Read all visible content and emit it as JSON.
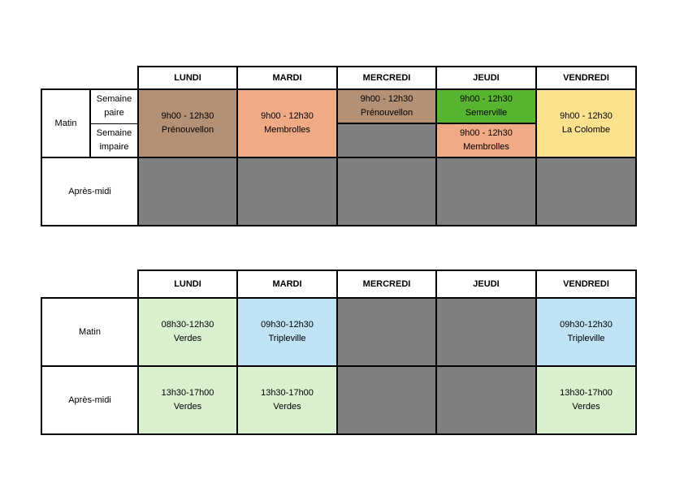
{
  "colors": {
    "brown": "#b49075",
    "salmon": "#f0aa85",
    "green": "#58b530",
    "yellow": "#fde28e",
    "gray": "#7f7f7f",
    "light_green": "#daf1d0",
    "light_blue": "#bee3f4"
  },
  "days": [
    "LUNDI",
    "MARDI",
    "MERCREDI",
    "JEUDI",
    "VENDREDI"
  ],
  "table1": {
    "matin": "Matin",
    "semaine_paire": [
      "Semaine",
      "paire"
    ],
    "semaine_impaire": [
      "Semaine",
      "impaire"
    ],
    "apres_midi": "Après-midi",
    "lundi": [
      "9h00 - 12h30",
      "Prénouvellon"
    ],
    "mardi": [
      "9h00 - 12h30",
      "Membrolles"
    ],
    "mercredi_paire": [
      "9h00 - 12h30",
      "Prénouvellon"
    ],
    "jeudi_paire": [
      "9h00 - 12h30",
      "Semerville"
    ],
    "jeudi_impaire": [
      "9h00 - 12h30",
      "Membrolles"
    ],
    "vendredi": [
      "9h00 - 12h30",
      "La Colombe"
    ]
  },
  "table2": {
    "matin": "Matin",
    "apres_midi": "Après-midi",
    "matin_lundi": [
      "08h30-12h30",
      "Verdes"
    ],
    "matin_mardi": [
      "09h30-12h30",
      "Tripleville"
    ],
    "matin_vendredi": [
      "09h30-12h30",
      "Tripleville"
    ],
    "am_lundi": [
      "13h30-17h00",
      "Verdes"
    ],
    "am_mardi": [
      "13h30-17h00",
      "Verdes"
    ],
    "am_vendredi": [
      "13h30-17h00",
      "Verdes"
    ]
  }
}
